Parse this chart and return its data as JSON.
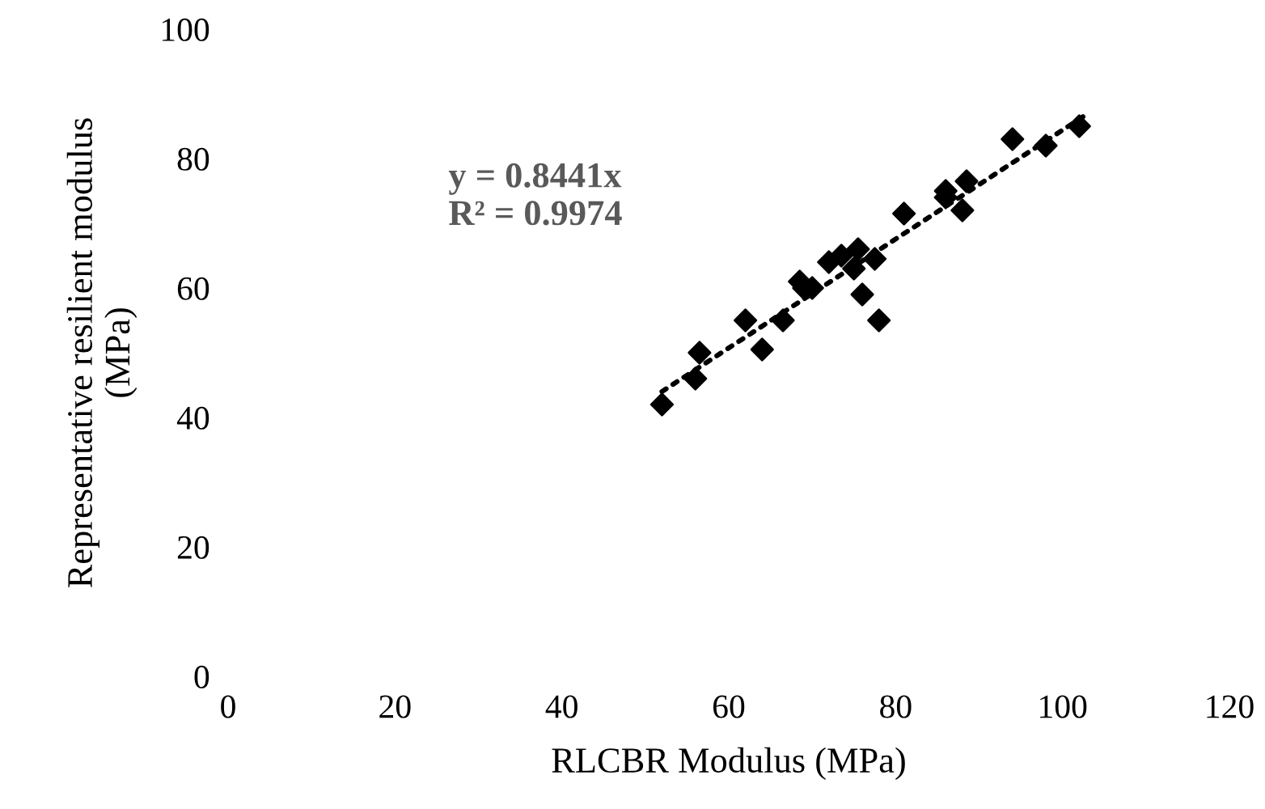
{
  "chart_data": {
    "type": "scatter",
    "xlabel": "RLCBR Modulus (MPa)",
    "ylabel": "Representative resilient modulus\n(MPa)",
    "xlim": [
      0,
      120
    ],
    "xticks": [
      0,
      20,
      40,
      60,
      80,
      100,
      120
    ],
    "ylim": [
      0,
      100
    ],
    "yticks": [
      0,
      20,
      40,
      60,
      80,
      100
    ],
    "grid": false,
    "legend": false,
    "series": [
      {
        "color": "#000000",
        "marker": "diamond",
        "x": [
          52,
          56,
          56.5,
          62,
          64,
          66.5,
          68.5,
          69,
          70,
          72,
          73.5,
          75.5,
          75,
          77.5,
          76,
          78,
          81,
          86,
          88.5,
          86,
          88,
          94,
          98,
          102
        ],
        "values": [
          42,
          46,
          50,
          55,
          50.5,
          55,
          61,
          60,
          60,
          64,
          65,
          66,
          63,
          64.5,
          59,
          55,
          71.5,
          75,
          76.5,
          74,
          72,
          83,
          82,
          85
        ]
      },
      {
        "type": "line",
        "color": "#000000",
        "line_style": "dotted",
        "x": [
          52,
          102.5
        ],
        "values": [
          44,
          86.5
        ]
      }
    ],
    "annotations": [
      "y = 0.8441x\nR² = 0.9974"
    ]
  }
}
